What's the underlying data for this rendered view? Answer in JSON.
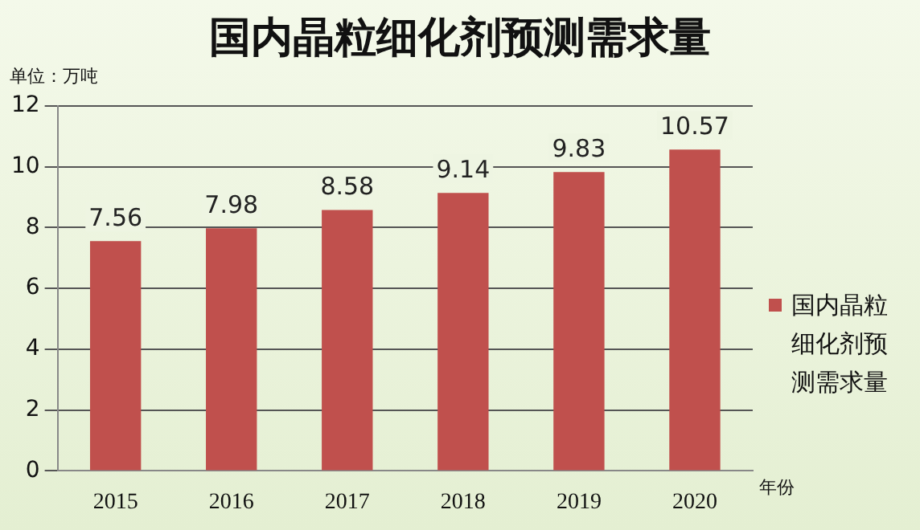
{
  "chart_data": {
    "type": "bar",
    "title": "国内晶粒细化剂预测需求量",
    "ylabel": "单位：万吨",
    "xlabel": "年份",
    "categories": [
      "2015",
      "2016",
      "2017",
      "2018",
      "2019",
      "2020"
    ],
    "series": [
      {
        "name": "国内晶粒细化剂预测需求量",
        "color": "#c0504d",
        "values": [
          7.56,
          7.98,
          8.58,
          9.14,
          9.83,
          10.57
        ]
      }
    ],
    "ylim": [
      0,
      12
    ],
    "yticks": [
      0,
      2,
      4,
      6,
      8,
      10,
      12
    ],
    "grid": "y",
    "legend": "right",
    "data_labels": true
  }
}
